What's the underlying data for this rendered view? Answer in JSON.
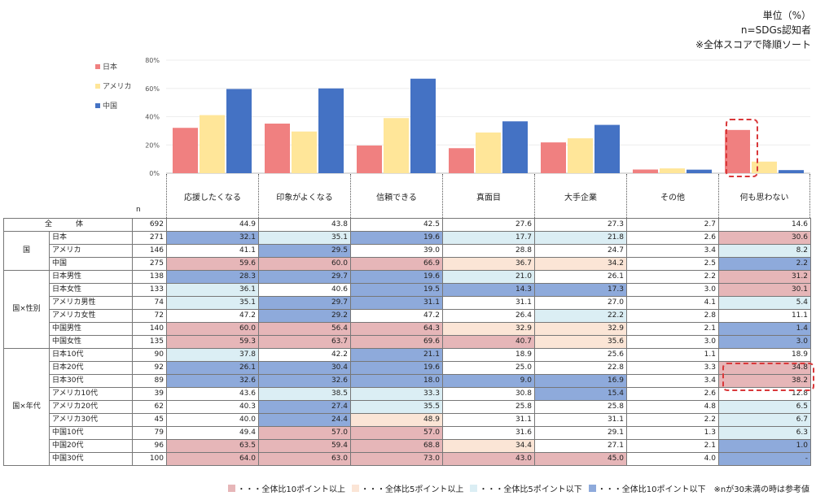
{
  "notes": {
    "unit": "単位（%）",
    "base": "n=SDGs認知者",
    "sort": "※全体スコアで降順ソート"
  },
  "chart_data": {
    "type": "bar",
    "categories": [
      "応援したくなる",
      "印象がよくなる",
      "信頼できる",
      "真面目",
      "大手企業",
      "その他",
      "何も思わない"
    ],
    "series": [
      {
        "name": "日本",
        "values": [
          32.1,
          35.1,
          19.6,
          17.7,
          21.8,
          2.6,
          30.6
        ],
        "color": "#f08080"
      },
      {
        "name": "アメリカ",
        "values": [
          41.1,
          29.5,
          39.0,
          28.8,
          24.7,
          3.4,
          8.2
        ],
        "color": "#ffe699"
      },
      {
        "name": "中国",
        "values": [
          59.6,
          60.0,
          66.9,
          36.7,
          34.2,
          2.5,
          2.2
        ],
        "color": "#4472c4"
      }
    ],
    "yticks": [
      "0%",
      "20%",
      "40%",
      "60%",
      "80%"
    ],
    "ylim": [
      0,
      80
    ],
    "legend_position": "left",
    "grid": true
  },
  "table": {
    "n_label": "n",
    "rows": [
      {
        "group": "全　体",
        "label": "",
        "n": "692",
        "values": [
          "44.9",
          "43.8",
          "42.5",
          "27.6",
          "27.3",
          "2.7",
          "14.6"
        ],
        "colors": [
          "",
          "",
          "",
          "",
          "",
          "",
          ""
        ]
      },
      {
        "group": "国",
        "label": "日本",
        "n": "271",
        "values": [
          "32.1",
          "35.1",
          "19.6",
          "17.7",
          "21.8",
          "2.6",
          "30.6"
        ],
        "colors": [
          "b2",
          "b1",
          "b2",
          "b1",
          "b1",
          "",
          "r2"
        ]
      },
      {
        "group": "",
        "label": "アメリカ",
        "n": "146",
        "values": [
          "41.1",
          "29.5",
          "39.0",
          "28.8",
          "24.7",
          "3.4",
          "8.2"
        ],
        "colors": [
          "",
          "b2",
          "",
          "",
          "",
          "",
          "b1"
        ]
      },
      {
        "group": "",
        "label": "中国",
        "n": "275",
        "values": [
          "59.6",
          "60.0",
          "66.9",
          "36.7",
          "34.2",
          "2.5",
          "2.2"
        ],
        "colors": [
          "r2",
          "r2",
          "r2",
          "r1",
          "r1",
          "",
          "b2"
        ]
      },
      {
        "group": "国×性別",
        "label": "日本男性",
        "n": "138",
        "values": [
          "28.3",
          "29.7",
          "19.6",
          "21.0",
          "26.1",
          "2.2",
          "31.2"
        ],
        "colors": [
          "b2",
          "b2",
          "b2",
          "b1",
          "",
          "",
          "r2"
        ]
      },
      {
        "group": "",
        "label": "日本女性",
        "n": "133",
        "values": [
          "36.1",
          "40.6",
          "19.5",
          "14.3",
          "17.3",
          "3.0",
          "30.1"
        ],
        "colors": [
          "b1",
          "",
          "b2",
          "b2",
          "b2",
          "",
          "r2"
        ]
      },
      {
        "group": "",
        "label": "アメリカ男性",
        "n": "74",
        "values": [
          "35.1",
          "29.7",
          "31.1",
          "31.1",
          "27.0",
          "4.1",
          "5.4"
        ],
        "colors": [
          "b1",
          "b2",
          "b2",
          "",
          "",
          "",
          "b1"
        ]
      },
      {
        "group": "",
        "label": "アメリカ女性",
        "n": "72",
        "values": [
          "47.2",
          "29.2",
          "47.2",
          "26.4",
          "22.2",
          "2.8",
          "11.1"
        ],
        "colors": [
          "",
          "b2",
          "",
          "",
          "b1",
          "",
          ""
        ]
      },
      {
        "group": "",
        "label": "中国男性",
        "n": "140",
        "values": [
          "60.0",
          "56.4",
          "64.3",
          "32.9",
          "32.9",
          "2.1",
          "1.4"
        ],
        "colors": [
          "r2",
          "r2",
          "r2",
          "r1",
          "r1",
          "",
          "b2"
        ]
      },
      {
        "group": "",
        "label": "中国女性",
        "n": "135",
        "values": [
          "59.3",
          "63.7",
          "69.6",
          "40.7",
          "35.6",
          "3.0",
          "3.0"
        ],
        "colors": [
          "r2",
          "r2",
          "r2",
          "r2",
          "r1",
          "",
          "b2"
        ]
      },
      {
        "group": "国×年代",
        "label": "日本10代",
        "n": "90",
        "values": [
          "37.8",
          "42.2",
          "21.1",
          "18.9",
          "25.6",
          "1.1",
          "18.9"
        ],
        "colors": [
          "b1",
          "",
          "b2",
          "",
          "",
          "",
          ""
        ]
      },
      {
        "group": "",
        "label": "日本20代",
        "n": "92",
        "values": [
          "26.1",
          "30.4",
          "19.6",
          "25.0",
          "22.8",
          "3.3",
          "34.8"
        ],
        "colors": [
          "b2",
          "b2",
          "b2",
          "",
          "",
          "",
          "r2"
        ]
      },
      {
        "group": "",
        "label": "日本30代",
        "n": "89",
        "values": [
          "32.6",
          "32.6",
          "18.0",
          "9.0",
          "16.9",
          "3.4",
          "38.2"
        ],
        "colors": [
          "b2",
          "b2",
          "b2",
          "b2",
          "b2",
          "",
          "r2"
        ]
      },
      {
        "group": "",
        "label": "アメリカ10代",
        "n": "39",
        "values": [
          "43.6",
          "38.5",
          "33.3",
          "30.8",
          "15.4",
          "2.6",
          "12.8"
        ],
        "colors": [
          "",
          "b1",
          "b1",
          "",
          "b2",
          "",
          ""
        ]
      },
      {
        "group": "",
        "label": "アメリカ20代",
        "n": "62",
        "values": [
          "40.3",
          "27.4",
          "35.5",
          "25.8",
          "25.8",
          "4.8",
          "6.5"
        ],
        "colors": [
          "",
          "b2",
          "b1",
          "",
          "",
          "",
          "b1"
        ]
      },
      {
        "group": "",
        "label": "アメリカ30代",
        "n": "45",
        "values": [
          "40.0",
          "24.4",
          "48.9",
          "31.1",
          "31.1",
          "2.2",
          "6.7"
        ],
        "colors": [
          "",
          "b2",
          "r1",
          "",
          "",
          "",
          "b1"
        ]
      },
      {
        "group": "",
        "label": "中国10代",
        "n": "79",
        "values": [
          "49.4",
          "57.0",
          "57.0",
          "31.6",
          "29.1",
          "1.3",
          "6.3"
        ],
        "colors": [
          "",
          "r2",
          "r2",
          "",
          "",
          "",
          "b1"
        ]
      },
      {
        "group": "",
        "label": "中国20代",
        "n": "96",
        "values": [
          "63.5",
          "59.4",
          "68.8",
          "34.4",
          "27.1",
          "2.1",
          "1.0"
        ],
        "colors": [
          "r2",
          "r2",
          "r2",
          "r1",
          "",
          "",
          "b2"
        ]
      },
      {
        "group": "",
        "label": "中国30代",
        "n": "100",
        "values": [
          "64.0",
          "63.0",
          "73.0",
          "43.0",
          "45.0",
          "4.0",
          "-"
        ],
        "colors": [
          "r2",
          "r2",
          "r2",
          "r2",
          "r2",
          "",
          "b2"
        ]
      }
    ]
  },
  "legend2": {
    "items": [
      {
        "text": "・・・全体比10ポイント以上",
        "color": "#e6b6b8"
      },
      {
        "text": "・・・全体比5ポイント以上",
        "color": "#fbe5d6"
      },
      {
        "text": "・・・全体比5ポイント以下",
        "color": "#dbeef4"
      },
      {
        "text": "・・・全体比10ポイント以下",
        "color": "#8eaadb"
      }
    ],
    "footnote": "※nが30未満の時は参考値"
  }
}
